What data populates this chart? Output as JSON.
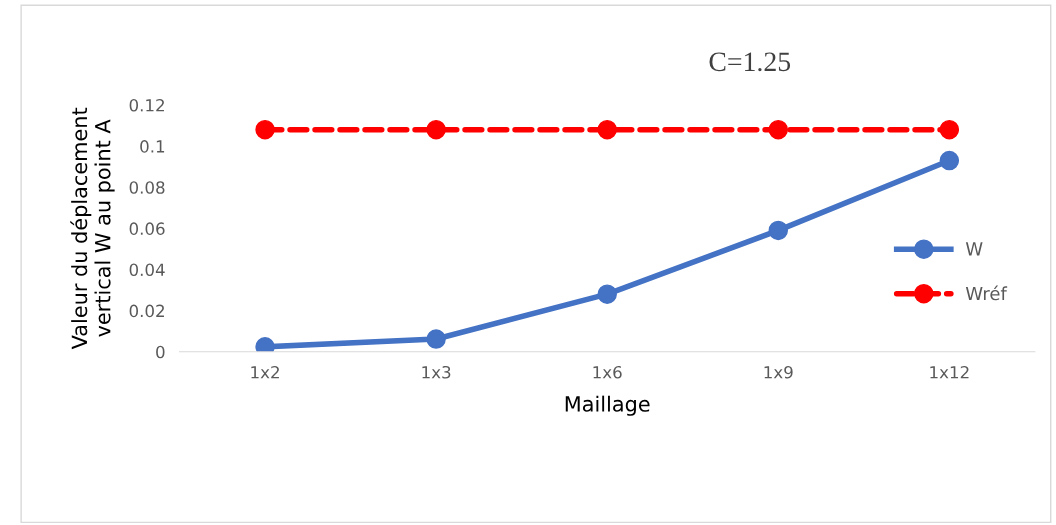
{
  "chart_data": {
    "type": "line",
    "title": "C=1.25",
    "xlabel": "Maillage",
    "ylabel": "Valeur du déplacement\nvertical W au point A",
    "categories": [
      "1x2",
      "1x3",
      "1x6",
      "1x9",
      "1x12"
    ],
    "series": [
      {
        "name": "W",
        "color": "#4472c4",
        "values": [
          0.0024,
          0.0062,
          0.028,
          0.059,
          0.093
        ],
        "marker": "circle",
        "line_style": "solid"
      },
      {
        "name": "Wréf",
        "color": "#ff0000",
        "values": [
          0.108,
          0.108,
          0.108,
          0.108,
          0.108
        ],
        "marker": "circle",
        "line_style": "dashed"
      }
    ],
    "ylim": [
      0,
      0.12
    ],
    "yticks": [
      {
        "value": 0,
        "label": "0"
      },
      0.02,
      0.04,
      0.06,
      0.08,
      0.1,
      0.12
    ],
    "grid": false,
    "legend": "right"
  }
}
